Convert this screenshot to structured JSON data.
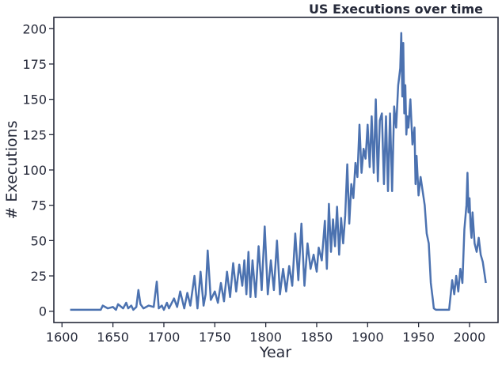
{
  "chart_data": {
    "type": "line",
    "title": "US Executions over time",
    "xlabel": "Year",
    "ylabel": "# Executions",
    "xlim": [
      1592,
      2028
    ],
    "ylim": [
      -8,
      208
    ],
    "xticks": [
      1600,
      1650,
      1700,
      1750,
      1800,
      1850,
      1900,
      1950,
      2000
    ],
    "yticks": [
      0,
      25,
      50,
      75,
      100,
      125,
      150,
      175,
      200
    ],
    "grid": false,
    "line_color": "#4c72b0",
    "series": [
      {
        "x": [
          1608,
          1622,
          1630,
          1635,
          1638,
          1640,
          1645,
          1650,
          1653,
          1655,
          1660,
          1663,
          1665,
          1668,
          1670,
          1673,
          1675,
          1677,
          1680,
          1685,
          1690,
          1693,
          1695,
          1698,
          1700,
          1703,
          1705,
          1710,
          1713,
          1716,
          1720,
          1723,
          1726,
          1730,
          1733,
          1736,
          1739,
          1741,
          1743,
          1746,
          1750,
          1753,
          1756,
          1759,
          1762,
          1765,
          1768,
          1771,
          1774,
          1777,
          1779,
          1781,
          1783,
          1785,
          1787,
          1790,
          1793,
          1796,
          1799,
          1802,
          1805,
          1808,
          1811,
          1814,
          1817,
          1820,
          1823,
          1826,
          1829,
          1832,
          1835,
          1838,
          1841,
          1844,
          1847,
          1850,
          1852,
          1855,
          1858,
          1860,
          1862,
          1864,
          1866,
          1868,
          1870,
          1872,
          1874,
          1876,
          1878,
          1880,
          1882,
          1884,
          1886,
          1888,
          1890,
          1892,
          1894,
          1896,
          1898,
          1900,
          1902,
          1904,
          1906,
          1908,
          1910,
          1912,
          1914,
          1916,
          1918,
          1920,
          1922,
          1924,
          1926,
          1928,
          1930,
          1932,
          1933,
          1934,
          1935,
          1936,
          1937,
          1938,
          1939,
          1940,
          1942,
          1944,
          1946,
          1947,
          1948,
          1950,
          1952,
          1954,
          1956,
          1958,
          1960,
          1962,
          1964,
          1965,
          1967,
          1970,
          1975,
          1980,
          1983,
          1985,
          1987,
          1989,
          1991,
          1993,
          1995,
          1997,
          1998,
          1999,
          2000,
          2001,
          2002,
          2003,
          2005,
          2007,
          2009,
          2011,
          2013,
          2016
        ],
        "y": [
          1,
          1,
          1,
          1,
          1,
          4,
          2,
          3,
          1,
          5,
          2,
          6,
          2,
          4,
          1,
          3,
          15,
          5,
          2,
          4,
          3,
          21,
          2,
          4,
          1,
          6,
          2,
          9,
          3,
          14,
          2,
          13,
          4,
          25,
          2,
          28,
          4,
          12,
          43,
          8,
          14,
          6,
          20,
          7,
          28,
          10,
          34,
          14,
          33,
          18,
          36,
          12,
          42,
          10,
          36,
          10,
          46,
          15,
          60,
          12,
          36,
          15,
          50,
          12,
          30,
          14,
          32,
          18,
          55,
          22,
          62,
          18,
          48,
          30,
          40,
          28,
          45,
          36,
          64,
          30,
          76,
          42,
          65,
          46,
          74,
          40,
          66,
          48,
          68,
          104,
          62,
          90,
          80,
          105,
          95,
          132,
          98,
          115,
          108,
          132,
          102,
          138,
          98,
          150,
          92,
          135,
          140,
          90,
          138,
          85,
          140,
          85,
          145,
          130,
          160,
          172,
          197,
          152,
          190,
          140,
          160,
          125,
          138,
          130,
          150,
          118,
          130,
          90,
          110,
          82,
          95,
          85,
          75,
          55,
          48,
          20,
          8,
          2,
          1,
          1,
          1,
          1,
          22,
          12,
          25,
          14,
          30,
          20,
          58,
          75,
          98,
          70,
          80,
          60,
          52,
          70,
          48,
          42,
          52,
          40,
          35,
          20
        ]
      }
    ]
  }
}
